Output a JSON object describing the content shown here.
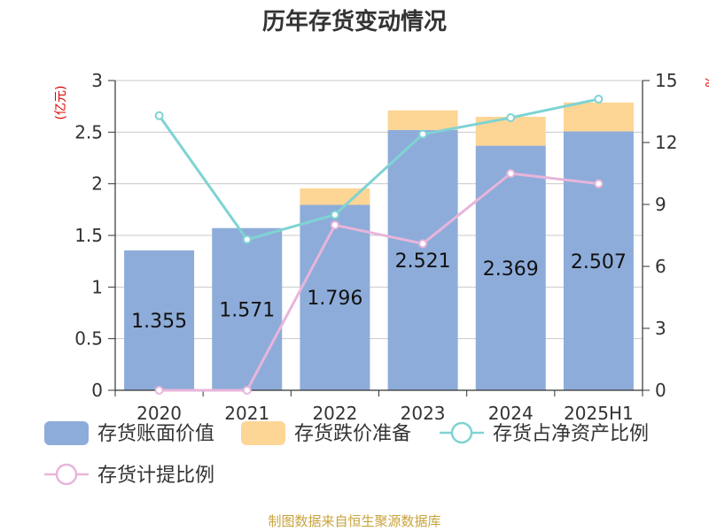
{
  "chart_data": {
    "type": "bar",
    "title": "历年存货变动情况",
    "left_axis_unit": "(亿元)",
    "right_axis_unit": "%",
    "categories": [
      "2020",
      "2021",
      "2022",
      "2023",
      "2024",
      "2025H1"
    ],
    "left_ylim": [
      0,
      3
    ],
    "left_ticks": [
      "0",
      "0.5",
      "1",
      "1.5",
      "2",
      "2.5",
      "3"
    ],
    "right_ylim": [
      0,
      15
    ],
    "right_ticks": [
      "0",
      "3",
      "6",
      "9",
      "12",
      "15"
    ],
    "stacked": true,
    "grid": true,
    "legend_position": "bottom",
    "series": [
      {
        "name": "存货账面价值",
        "kind": "bar",
        "axis": "left",
        "color": "#8eacd9",
        "values": [
          1.355,
          1.571,
          1.796,
          2.521,
          2.369,
          2.507
        ],
        "labels": [
          "1.355",
          "1.571",
          "1.796",
          "2.521",
          "2.369",
          "2.507"
        ]
      },
      {
        "name": "存货跌价准备",
        "kind": "bar",
        "axis": "left",
        "color": "#fdd595",
        "values": [
          0,
          0,
          0.16,
          0.19,
          0.28,
          0.28
        ]
      },
      {
        "name": "存货占净资产比例",
        "kind": "line",
        "axis": "right",
        "color": "#7fd3d3",
        "values": [
          13.3,
          7.3,
          8.5,
          12.4,
          13.2,
          14.1
        ]
      },
      {
        "name": "存货计提比例",
        "kind": "line",
        "axis": "right",
        "color": "#e8b5db",
        "values": [
          0,
          0,
          8.0,
          7.1,
          10.5,
          10.0
        ]
      }
    ]
  },
  "source_text": "制图数据来自恒生聚源数据库"
}
